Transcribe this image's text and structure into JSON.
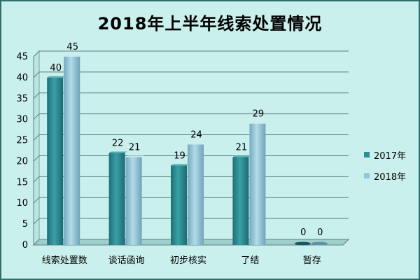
{
  "chart_data": {
    "type": "bar",
    "title": "2018年上半年线索处置情况",
    "categories": [
      "线索处置数",
      "谈话函询",
      "初步核实",
      "了结",
      "暂存"
    ],
    "series": [
      {
        "name": "2017年",
        "values": [
          40,
          22,
          19,
          21,
          0
        ],
        "color": "#2e8f95"
      },
      {
        "name": "2018年",
        "values": [
          45,
          21,
          24,
          29,
          0
        ],
        "color": "#93c6d7"
      }
    ],
    "ylim": [
      0,
      45
    ],
    "yticks": [
      0,
      5,
      10,
      15,
      20,
      25,
      30,
      35,
      40,
      45
    ],
    "grid": true,
    "legend": "right"
  }
}
